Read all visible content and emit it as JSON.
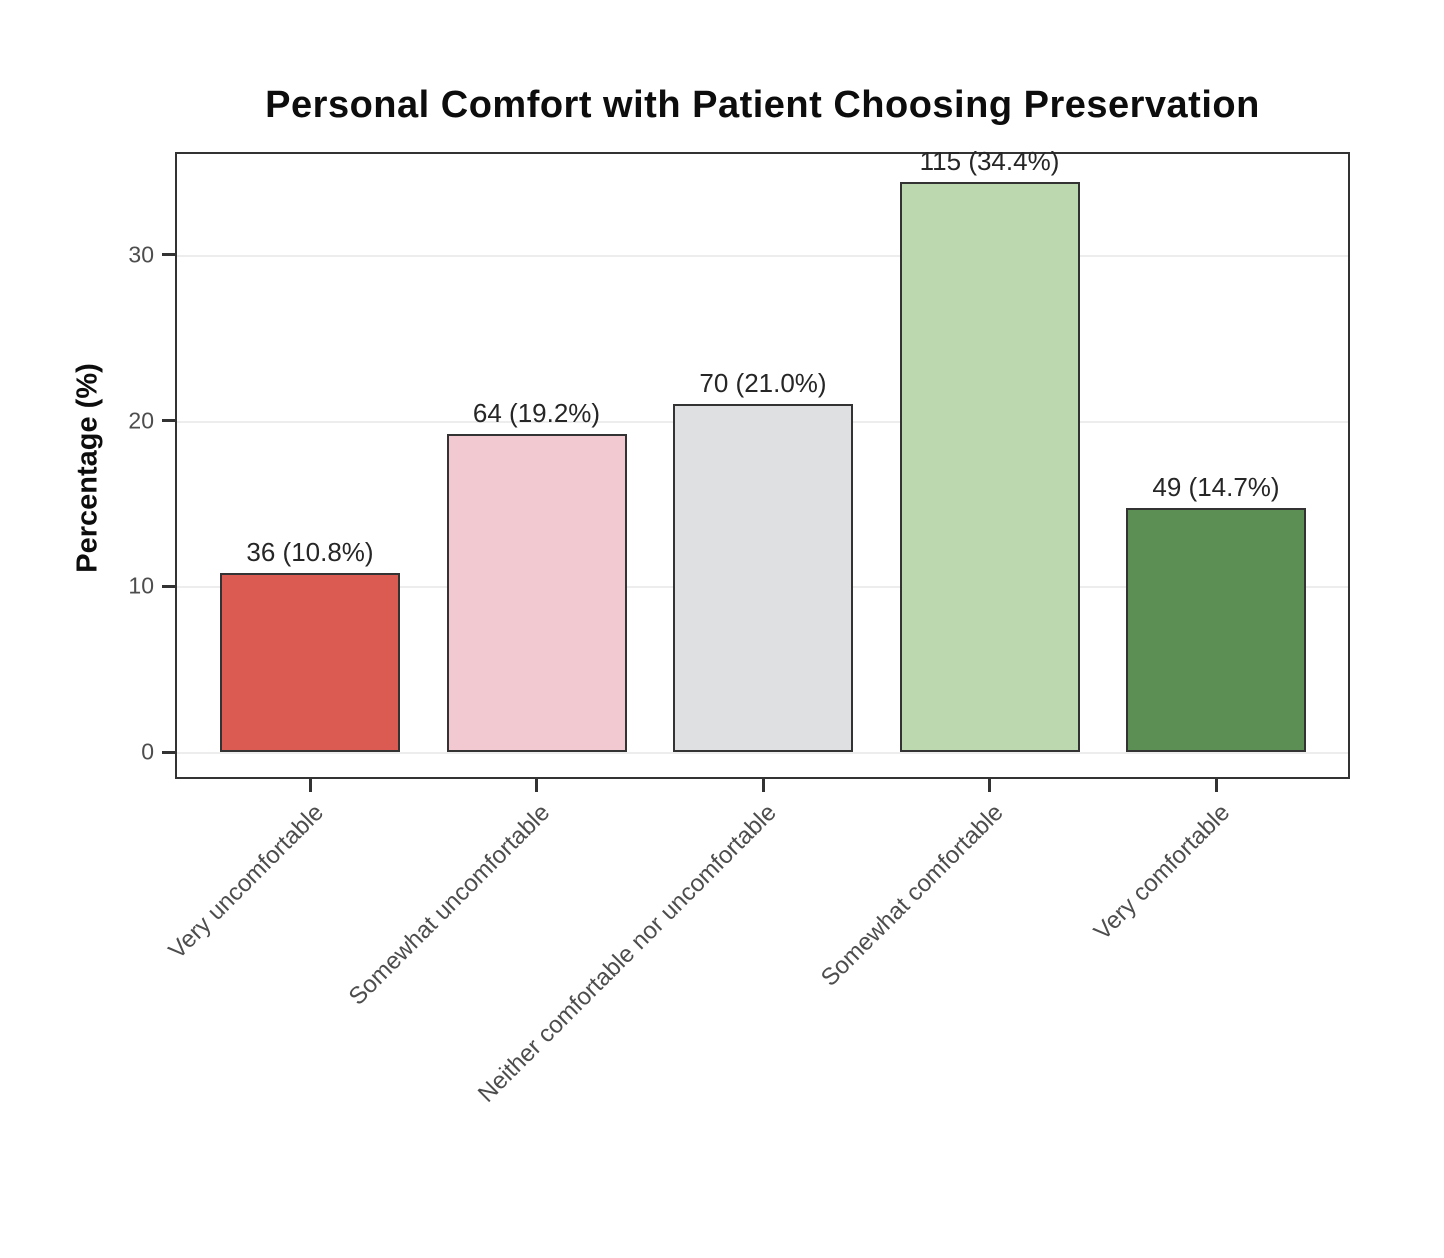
{
  "figure": {
    "title": "Personal Comfort with Patient Choosing Preservation",
    "y_axis_title": "Percentage (%)"
  },
  "chart_data": {
    "type": "bar",
    "title": "Personal Comfort with Patient Choosing Preservation",
    "xlabel": "",
    "ylabel": "Percentage (%)",
    "ylim": [
      0,
      36.2
    ],
    "yticks": [
      0,
      10,
      20,
      30
    ],
    "grid": "major-horizontal",
    "legend": "none",
    "categories": [
      "Very uncomfortable",
      "Somewhat uncomfortable",
      "Neither comfortable nor uncomfortable",
      "Somewhat comfortable",
      "Very comfortable"
    ],
    "counts": [
      36,
      64,
      70,
      115,
      49
    ],
    "values": [
      10.8,
      19.2,
      21.0,
      34.4,
      14.7
    ],
    "bar_labels": [
      "36 (10.8%)",
      "64 (19.2%)",
      "70 (21.0%)",
      "115 (34.4%)",
      "49 (14.7%)"
    ],
    "bar_colors": [
      "#DB5A52",
      "#F3C9D1",
      "#DEE0E1",
      "#BCD8AE",
      "#5C8F53"
    ],
    "bar_border_color": "#333333",
    "gridline_color": "#ededed",
    "tick_color": "#333333",
    "tick_label_color": "#4d4d4d",
    "value_label_color": "#262626"
  }
}
